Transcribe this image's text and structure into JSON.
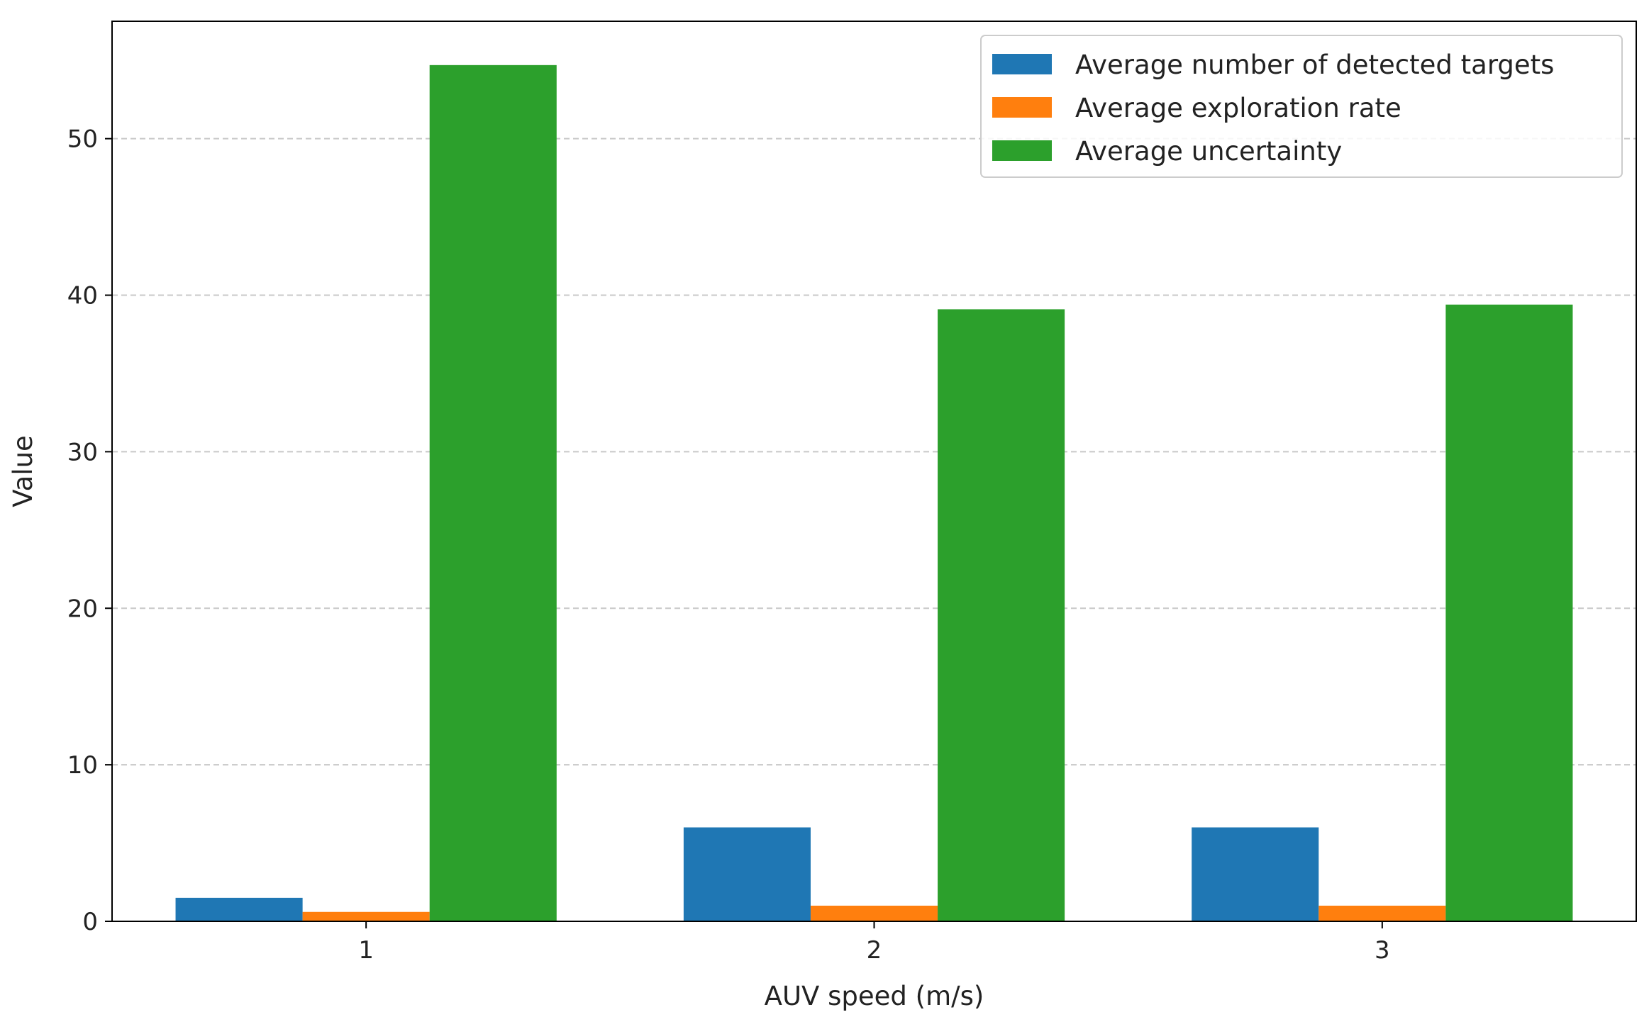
{
  "chart_data": {
    "type": "bar",
    "title": "",
    "xlabel": "AUV speed (m/s)",
    "ylabel": "Value",
    "categories": [
      "1",
      "2",
      "3"
    ],
    "ylim": [
      0,
      57.5
    ],
    "yticks": [
      0,
      10,
      20,
      30,
      40,
      50
    ],
    "grid": "y-dashed",
    "legend_position": "top-right",
    "series": [
      {
        "name": "Average number of detected targets",
        "color": "#1f77b4",
        "values": [
          1.5,
          6.0,
          6.0
        ]
      },
      {
        "name": "Average exploration rate",
        "color": "#ff7f0e",
        "values": [
          0.6,
          1.0,
          1.0
        ]
      },
      {
        "name": "Average uncertainty",
        "color": "#2ca02c",
        "values": [
          54.7,
          39.1,
          39.4
        ]
      }
    ]
  }
}
